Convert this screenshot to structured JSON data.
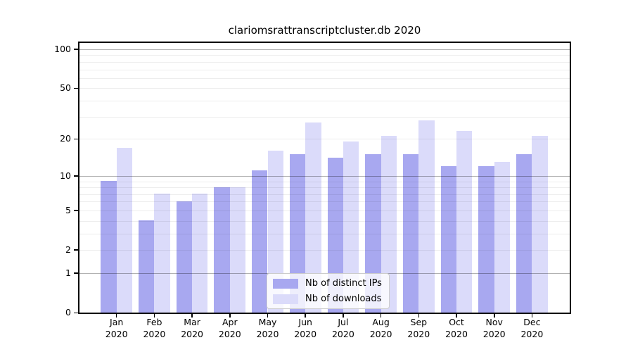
{
  "chart_data": {
    "type": "bar",
    "title": "clariomsrattranscriptcluster.db 2020",
    "categories": [
      "Jan",
      "Feb",
      "Mar",
      "Apr",
      "May",
      "Jun",
      "Jul",
      "Aug",
      "Sep",
      "Oct",
      "Nov",
      "Dec"
    ],
    "x_year": "2020",
    "series": [
      {
        "name": "Nb of distinct IPs",
        "color": "#a8a8f0",
        "values": [
          9,
          4,
          6,
          8,
          11,
          15,
          14,
          15,
          15,
          12,
          12,
          15
        ]
      },
      {
        "name": "Nb of downloads",
        "color": "#dbdbfa",
        "values": [
          17,
          7,
          7,
          8,
          16,
          27,
          19,
          21,
          28,
          23,
          13,
          21
        ]
      }
    ],
    "y_axis": {
      "scale": "log1p",
      "range": [
        0,
        100
      ],
      "tick_labels": [
        "100",
        "50",
        "20",
        "10",
        "5",
        "2",
        "1",
        "0"
      ],
      "tick_values": [
        100,
        50,
        20,
        10,
        5,
        2,
        1,
        0
      ],
      "major_grid_values": [
        1,
        10,
        100
      ],
      "minor_grid_values": [
        2,
        3,
        4,
        5,
        6,
        7,
        8,
        9,
        20,
        30,
        40,
        50,
        60,
        70,
        80,
        90
      ]
    },
    "legend": {
      "position": "lower center",
      "entries": [
        "Nb of distinct IPs",
        "Nb of downloads"
      ]
    },
    "grid": true,
    "colors": {
      "spine": "#000000",
      "background": "#ffffff",
      "legend_border": "#cccccc"
    }
  }
}
